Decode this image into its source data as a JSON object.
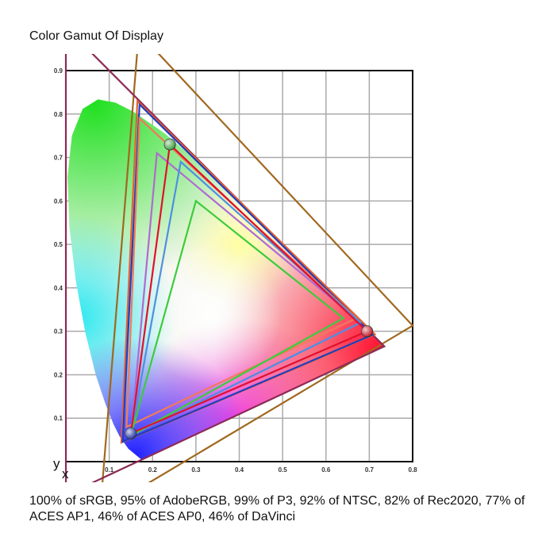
{
  "title": "Color Gamut Of Display",
  "caption": "100% of sRGB, 95% of AdobeRGB, 99% of P3, 92% of NTSC, 82% of Rec2020, 77% of ACES AP1, 46% of ACES AP0, 46% of DaVinci",
  "chart_data": {
    "type": "scatter",
    "xlabel": "x",
    "ylabel": "y",
    "xlim": [
      0,
      0.8
    ],
    "ylim": [
      0,
      0.9
    ],
    "grid": true,
    "x_ticks": [
      "0.1",
      "0.2",
      "0.3",
      "0.4",
      "0.5",
      "0.6",
      "0.7",
      "0.8"
    ],
    "y_ticks": [
      "0.1",
      "0.2",
      "0.3",
      "0.4",
      "0.5",
      "0.6",
      "0.7",
      "0.8",
      "0.9"
    ],
    "spectral_locus": [
      [
        0.1741,
        0.005
      ],
      [
        0.144,
        0.0297
      ],
      [
        0.1241,
        0.0578
      ],
      [
        0.1096,
        0.0868
      ],
      [
        0.0913,
        0.1327
      ],
      [
        0.0687,
        0.2007
      ],
      [
        0.0454,
        0.295
      ],
      [
        0.0235,
        0.4127
      ],
      [
        0.0082,
        0.5384
      ],
      [
        0.0039,
        0.6548
      ],
      [
        0.0139,
        0.7502
      ],
      [
        0.0389,
        0.812
      ],
      [
        0.0743,
        0.8338
      ],
      [
        0.1142,
        0.8262
      ],
      [
        0.1547,
        0.8059
      ],
      [
        0.2296,
        0.7543
      ],
      [
        0.3016,
        0.6923
      ],
      [
        0.3731,
        0.6245
      ],
      [
        0.4441,
        0.5547
      ],
      [
        0.5125,
        0.4866
      ],
      [
        0.5752,
        0.4242
      ],
      [
        0.627,
        0.3725
      ],
      [
        0.6915,
        0.3083
      ],
      [
        0.7347,
        0.2653
      ]
    ],
    "gamuts": [
      {
        "color": "#a0681e",
        "points": [
          [
            0.8,
            0.313
          ],
          [
            0.1682,
            0.9877
          ],
          [
            0.079,
            -0.1155
          ]
        ]
      },
      {
        "color": "#8c2a55",
        "points": [
          [
            0.7347,
            0.2653
          ],
          [
            0.0,
            1.0
          ],
          [
            0.0001,
            -0.077
          ]
        ]
      },
      {
        "color": "#e8602e",
        "points": [
          [
            0.713,
            0.293
          ],
          [
            0.165,
            0.83
          ],
          [
            0.128,
            0.044
          ]
        ]
      },
      {
        "color": "#1f3fbf",
        "points": [
          [
            0.708,
            0.292
          ],
          [
            0.17,
            0.822
          ],
          [
            0.131,
            0.046
          ]
        ]
      },
      {
        "color": "#f07a5a",
        "points": [
          [
            0.67,
            0.33
          ],
          [
            0.17,
            0.79
          ],
          [
            0.14,
            0.08
          ]
        ]
      },
      {
        "color": "#b06ad0",
        "points": [
          [
            0.68,
            0.32
          ],
          [
            0.21,
            0.71
          ],
          [
            0.15,
            0.06
          ]
        ]
      },
      {
        "color": "#4f8fe0",
        "points": [
          [
            0.68,
            0.32
          ],
          [
            0.265,
            0.69
          ],
          [
            0.15,
            0.06
          ]
        ]
      },
      {
        "color": "#3ccc3c",
        "points": [
          [
            0.64,
            0.33
          ],
          [
            0.3,
            0.6
          ],
          [
            0.15,
            0.06
          ]
        ]
      },
      {
        "color": "#e0102e",
        "points": [
          [
            0.695,
            0.3
          ],
          [
            0.24,
            0.73
          ],
          [
            0.15,
            0.065
          ]
        ]
      }
    ],
    "display_primaries": [
      {
        "color": "#3a9a3a",
        "point": [
          0.24,
          0.73
        ]
      },
      {
        "color": "#c0101e",
        "point": [
          0.695,
          0.3
        ]
      },
      {
        "color": "#2030a0",
        "point": [
          0.15,
          0.065
        ]
      }
    ]
  }
}
